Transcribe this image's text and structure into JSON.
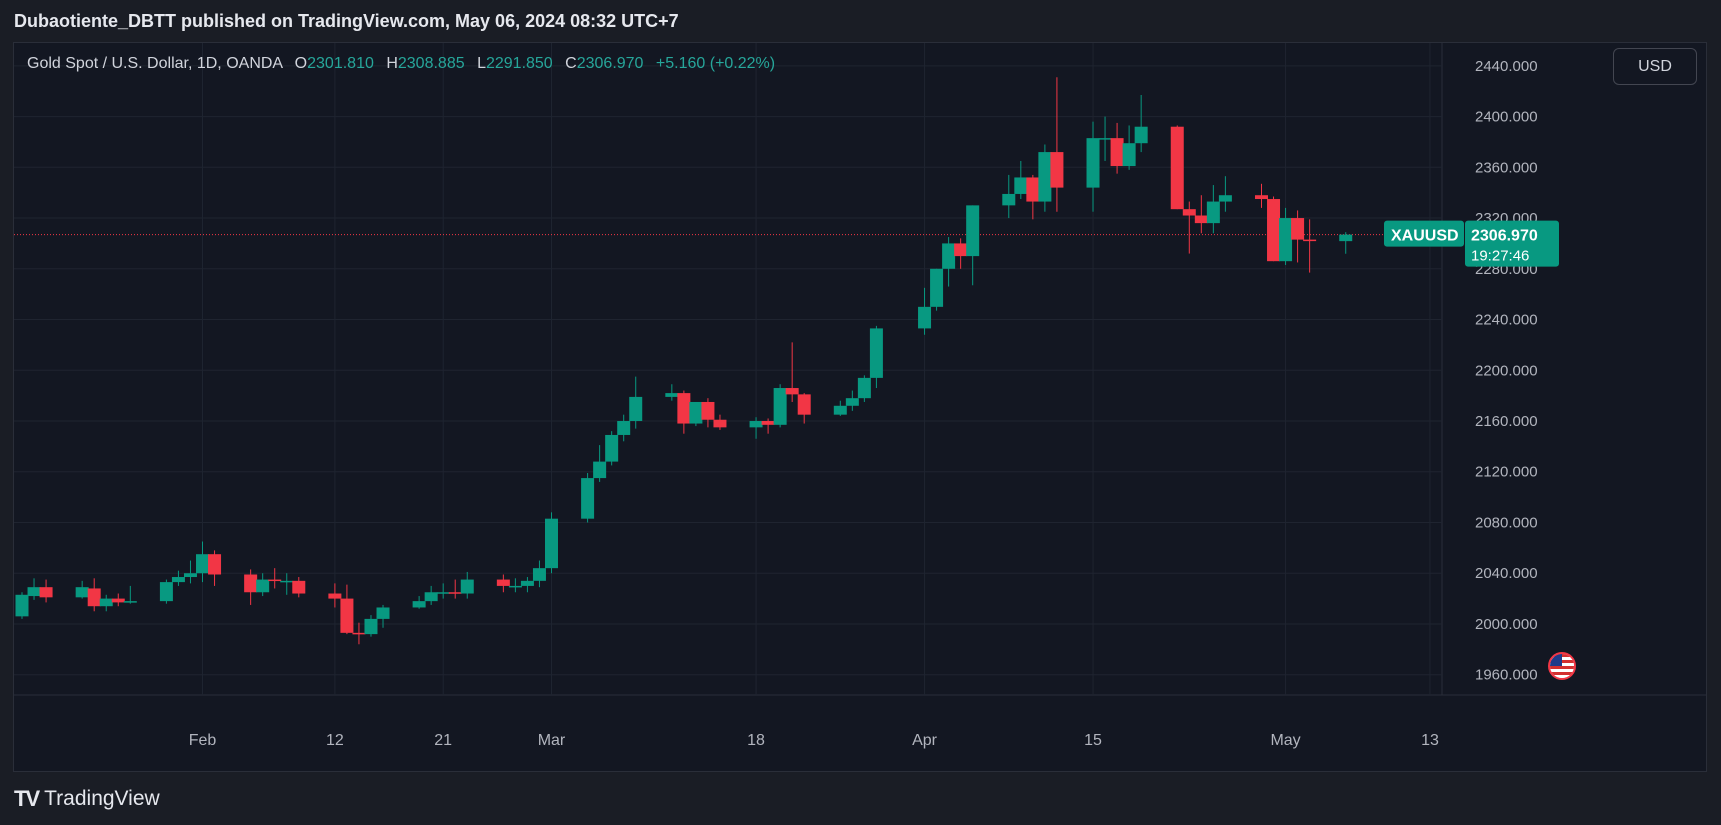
{
  "header": {
    "published_by": "Dubaotiente_DBTT published on TradingView.com, May 06, 2024 08:32 UTC+7"
  },
  "legend": {
    "symbol": "Gold Spot / U.S. Dollar, 1D, OANDA",
    "o_label": "O",
    "o_value": "2301.810",
    "h_label": "H",
    "h_value": "2308.885",
    "l_label": "L",
    "l_value": "2291.850",
    "c_label": "C",
    "c_value": "2306.970",
    "change": "+5.160 (+0.22%)"
  },
  "currency_button": "USD",
  "price_tag": {
    "symbol": "XAUUSD",
    "price": "2306.970",
    "countdown": "19:27:46"
  },
  "footer": {
    "logo_text": "TradingView"
  },
  "icons": {
    "flag": "us-flag-icon",
    "logo": "tradingview-logo-icon"
  },
  "colors": {
    "up": "#089981",
    "down": "#f23645",
    "background": "#131722",
    "grid": "#1f2430",
    "text": "#b2b5be"
  },
  "chart_data": {
    "type": "candlestick",
    "y_ticks": [
      "1960.000",
      "2000.000",
      "2040.000",
      "2080.000",
      "2120.000",
      "2160.000",
      "2200.000",
      "2240.000",
      "2280.000",
      "2320.000",
      "2360.000",
      "2400.000",
      "2440.000"
    ],
    "ylim": [
      1944,
      2458
    ],
    "x_ticks": [
      {
        "label": "Feb",
        "date": "2024-02-01"
      },
      {
        "label": "12",
        "date": "2024-02-12"
      },
      {
        "label": "21",
        "date": "2024-02-21"
      },
      {
        "label": "Mar",
        "date": "2024-03-01"
      },
      {
        "label": "18",
        "date": "2024-03-18"
      },
      {
        "label": "Apr",
        "date": "2024-04-01"
      },
      {
        "label": "15",
        "date": "2024-04-15"
      },
      {
        "label": "May",
        "date": "2024-05-01"
      },
      {
        "label": "13",
        "date": "2024-05-13"
      }
    ],
    "last_price": 2306.97,
    "candles": [
      {
        "d": "2024-01-17",
        "o": 2006,
        "h": 2025,
        "l": 2004,
        "c": 2023
      },
      {
        "d": "2024-01-18",
        "o": 2022,
        "h": 2036,
        "l": 2019,
        "c": 2029
      },
      {
        "d": "2024-01-19",
        "o": 2029,
        "h": 2035,
        "l": 2017,
        "c": 2021
      },
      {
        "d": "2024-01-22",
        "o": 2021,
        "h": 2034,
        "l": 2020,
        "c": 2029
      },
      {
        "d": "2024-01-23",
        "o": 2028,
        "h": 2036,
        "l": 2010,
        "c": 2014
      },
      {
        "d": "2024-01-24",
        "o": 2014,
        "h": 2023,
        "l": 2010,
        "c": 2020
      },
      {
        "d": "2024-01-25",
        "o": 2020,
        "h": 2024,
        "l": 2014,
        "c": 2017
      },
      {
        "d": "2024-01-26",
        "o": 2017,
        "h": 2030,
        "l": 2016,
        "c": 2018
      },
      {
        "d": "2024-01-29",
        "o": 2018,
        "h": 2035,
        "l": 2016,
        "c": 2033
      },
      {
        "d": "2024-01-30",
        "o": 2033,
        "h": 2042,
        "l": 2030,
        "c": 2037
      },
      {
        "d": "2024-01-31",
        "o": 2037,
        "h": 2050,
        "l": 2032,
        "c": 2040
      },
      {
        "d": "2024-02-01",
        "o": 2040,
        "h": 2065,
        "l": 2033,
        "c": 2055
      },
      {
        "d": "2024-02-02",
        "o": 2055,
        "h": 2058,
        "l": 2030,
        "c": 2039
      },
      {
        "d": "2024-02-05",
        "o": 2039,
        "h": 2043,
        "l": 2015,
        "c": 2025
      },
      {
        "d": "2024-02-06",
        "o": 2025,
        "h": 2040,
        "l": 2022,
        "c": 2035
      },
      {
        "d": "2024-02-07",
        "o": 2035,
        "h": 2044,
        "l": 2028,
        "c": 2034
      },
      {
        "d": "2024-02-08",
        "o": 2034,
        "h": 2040,
        "l": 2023,
        "c": 2034
      },
      {
        "d": "2024-02-09",
        "o": 2034,
        "h": 2037,
        "l": 2021,
        "c": 2024
      },
      {
        "d": "2024-02-12",
        "o": 2024,
        "h": 2032,
        "l": 2013,
        "c": 2020
      },
      {
        "d": "2024-02-13",
        "o": 2020,
        "h": 2031,
        "l": 1992,
        "c": 1993
      },
      {
        "d": "2024-02-14",
        "o": 1993,
        "h": 2001,
        "l": 1984,
        "c": 1992
      },
      {
        "d": "2024-02-15",
        "o": 1992,
        "h": 2007,
        "l": 1990,
        "c": 2004
      },
      {
        "d": "2024-02-16",
        "o": 2004,
        "h": 2015,
        "l": 1997,
        "c": 2013
      },
      {
        "d": "2024-02-19",
        "o": 2013,
        "h": 2022,
        "l": 2012,
        "c": 2018
      },
      {
        "d": "2024-02-20",
        "o": 2018,
        "h": 2030,
        "l": 2015,
        "c": 2025
      },
      {
        "d": "2024-02-21",
        "o": 2025,
        "h": 2032,
        "l": 2020,
        "c": 2025
      },
      {
        "d": "2024-02-22",
        "o": 2025,
        "h": 2035,
        "l": 2020,
        "c": 2024
      },
      {
        "d": "2024-02-23",
        "o": 2024,
        "h": 2041,
        "l": 2020,
        "c": 2035
      },
      {
        "d": "2024-02-26",
        "o": 2035,
        "h": 2039,
        "l": 2025,
        "c": 2030
      },
      {
        "d": "2024-02-27",
        "o": 2030,
        "h": 2036,
        "l": 2025,
        "c": 2030
      },
      {
        "d": "2024-02-28",
        "o": 2030,
        "h": 2037,
        "l": 2025,
        "c": 2034
      },
      {
        "d": "2024-02-29",
        "o": 2034,
        "h": 2050,
        "l": 2029,
        "c": 2044
      },
      {
        "d": "2024-03-01",
        "o": 2044,
        "h": 2088,
        "l": 2040,
        "c": 2083
      },
      {
        "d": "2024-03-04",
        "o": 2083,
        "h": 2119,
        "l": 2080,
        "c": 2115
      },
      {
        "d": "2024-03-05",
        "o": 2115,
        "h": 2141,
        "l": 2112,
        "c": 2128
      },
      {
        "d": "2024-03-06",
        "o": 2128,
        "h": 2152,
        "l": 2125,
        "c": 2149
      },
      {
        "d": "2024-03-07",
        "o": 2149,
        "h": 2165,
        "l": 2144,
        "c": 2160
      },
      {
        "d": "2024-03-08",
        "o": 2160,
        "h": 2195,
        "l": 2154,
        "c": 2179
      },
      {
        "d": "2024-03-11",
        "o": 2179,
        "h": 2189,
        "l": 2176,
        "c": 2182
      },
      {
        "d": "2024-03-12",
        "o": 2182,
        "h": 2184,
        "l": 2150,
        "c": 2158
      },
      {
        "d": "2024-03-13",
        "o": 2158,
        "h": 2175,
        "l": 2156,
        "c": 2175
      },
      {
        "d": "2024-03-14",
        "o": 2175,
        "h": 2178,
        "l": 2155,
        "c": 2161
      },
      {
        "d": "2024-03-15",
        "o": 2161,
        "h": 2165,
        "l": 2153,
        "c": 2155
      },
      {
        "d": "2024-03-18",
        "o": 2155,
        "h": 2163,
        "l": 2146,
        "c": 2160
      },
      {
        "d": "2024-03-19",
        "o": 2160,
        "h": 2162,
        "l": 2150,
        "c": 2157
      },
      {
        "d": "2024-03-20",
        "o": 2157,
        "h": 2189,
        "l": 2155,
        "c": 2186
      },
      {
        "d": "2024-03-21",
        "o": 2186,
        "h": 2222,
        "l": 2175,
        "c": 2181
      },
      {
        "d": "2024-03-22",
        "o": 2181,
        "h": 2182,
        "l": 2158,
        "c": 2165
      },
      {
        "d": "2024-03-25",
        "o": 2165,
        "h": 2176,
        "l": 2164,
        "c": 2172
      },
      {
        "d": "2024-03-26",
        "o": 2172,
        "h": 2184,
        "l": 2168,
        "c": 2178
      },
      {
        "d": "2024-03-27",
        "o": 2178,
        "h": 2196,
        "l": 2175,
        "c": 2194
      },
      {
        "d": "2024-03-28",
        "o": 2194,
        "h": 2235,
        "l": 2186,
        "c": 2233
      },
      {
        "d": "2024-04-01",
        "o": 2233,
        "h": 2265,
        "l": 2228,
        "c": 2250
      },
      {
        "d": "2024-04-02",
        "o": 2250,
        "h": 2280,
        "l": 2247,
        "c": 2280
      },
      {
        "d": "2024-04-03",
        "o": 2280,
        "h": 2305,
        "l": 2266,
        "c": 2300
      },
      {
        "d": "2024-04-04",
        "o": 2300,
        "h": 2304,
        "l": 2280,
        "c": 2290
      },
      {
        "d": "2024-04-05",
        "o": 2290,
        "h": 2330,
        "l": 2267,
        "c": 2330
      },
      {
        "d": "2024-04-08",
        "o": 2330,
        "h": 2354,
        "l": 2320,
        "c": 2339
      },
      {
        "d": "2024-04-09",
        "o": 2339,
        "h": 2365,
        "l": 2335,
        "c": 2352
      },
      {
        "d": "2024-04-10",
        "o": 2352,
        "h": 2354,
        "l": 2319,
        "c": 2333
      },
      {
        "d": "2024-04-11",
        "o": 2333,
        "h": 2378,
        "l": 2325,
        "c": 2372
      },
      {
        "d": "2024-04-12",
        "o": 2372,
        "h": 2431,
        "l": 2325,
        "c": 2344
      },
      {
        "d": "2024-04-15",
        "o": 2344,
        "h": 2396,
        "l": 2325,
        "c": 2383
      },
      {
        "d": "2024-04-16",
        "o": 2383,
        "h": 2400,
        "l": 2365,
        "c": 2383
      },
      {
        "d": "2024-04-17",
        "o": 2383,
        "h": 2395,
        "l": 2355,
        "c": 2361
      },
      {
        "d": "2024-04-18",
        "o": 2361,
        "h": 2393,
        "l": 2358,
        "c": 2379
      },
      {
        "d": "2024-04-19",
        "o": 2379,
        "h": 2417,
        "l": 2372,
        "c": 2392
      },
      {
        "d": "2024-04-22",
        "o": 2392,
        "h": 2393,
        "l": 2327,
        "c": 2327
      },
      {
        "d": "2024-04-23",
        "o": 2327,
        "h": 2333,
        "l": 2292,
        "c": 2322
      },
      {
        "d": "2024-04-24",
        "o": 2322,
        "h": 2338,
        "l": 2308,
        "c": 2316
      },
      {
        "d": "2024-04-25",
        "o": 2316,
        "h": 2346,
        "l": 2308,
        "c": 2333
      },
      {
        "d": "2024-04-26",
        "o": 2333,
        "h": 2353,
        "l": 2325,
        "c": 2338
      },
      {
        "d": "2024-04-29",
        "o": 2338,
        "h": 2347,
        "l": 2328,
        "c": 2335
      },
      {
        "d": "2024-04-30",
        "o": 2335,
        "h": 2337,
        "l": 2286,
        "c": 2286
      },
      {
        "d": "2024-05-01",
        "o": 2286,
        "h": 2328,
        "l": 2283,
        "c": 2320
      },
      {
        "d": "2024-05-02",
        "o": 2320,
        "h": 2326,
        "l": 2285,
        "c": 2303
      },
      {
        "d": "2024-05-03",
        "o": 2303,
        "h": 2319,
        "l": 2277,
        "c": 2302
      },
      {
        "d": "2024-05-06",
        "o": 2301.81,
        "h": 2308.885,
        "l": 2291.85,
        "c": 2306.97
      }
    ]
  }
}
